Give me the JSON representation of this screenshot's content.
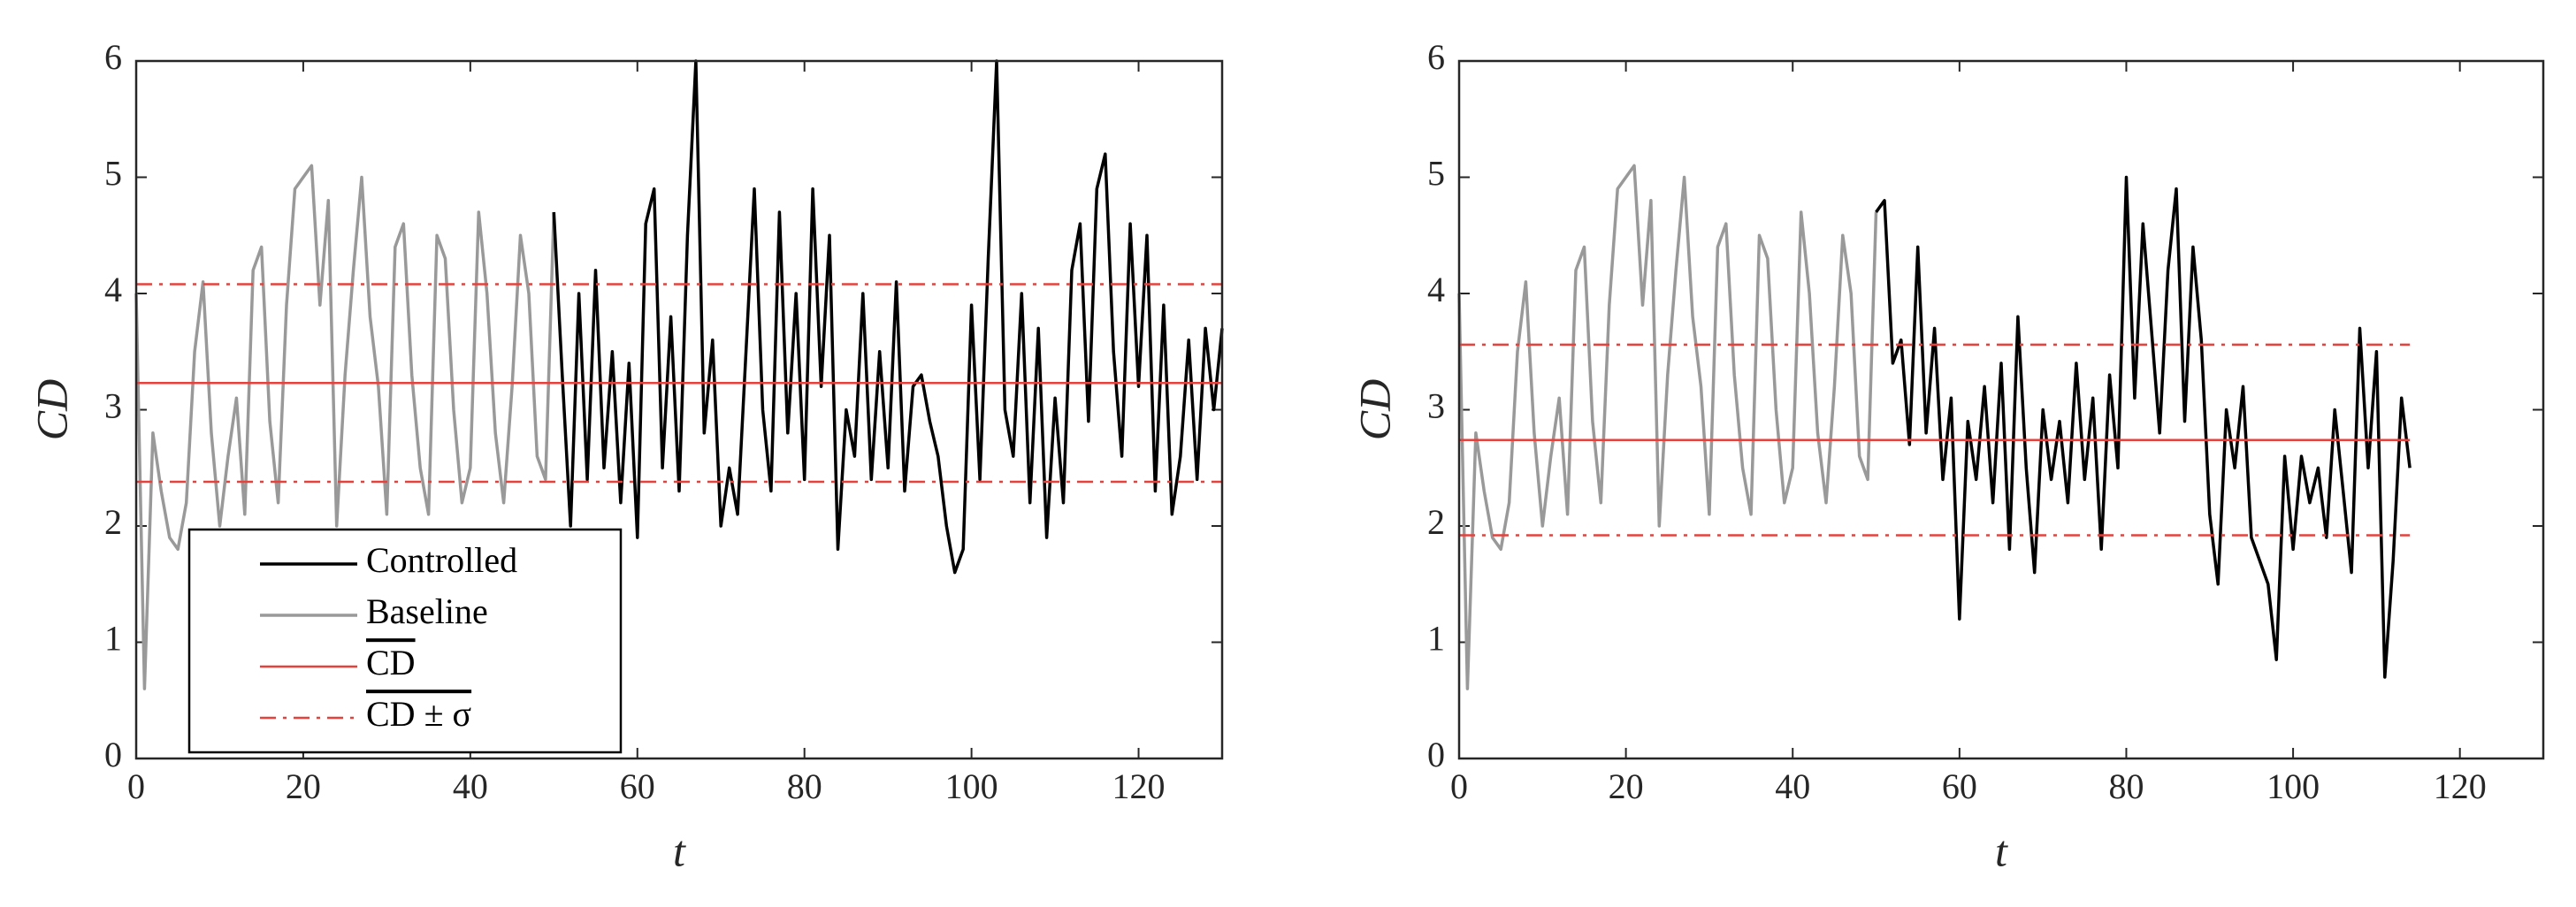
{
  "chart_data": [
    {
      "type": "line",
      "xlabel": "t",
      "ylabel": "CD",
      "xlim": [
        0,
        130
      ],
      "ylim": [
        0,
        6
      ],
      "xticks": [
        0,
        20,
        40,
        60,
        80,
        100,
        120
      ],
      "yticks": [
        0,
        1,
        2,
        3,
        4,
        5,
        6
      ],
      "legend": "lower left",
      "series": [
        {
          "name": "Controlled",
          "color": "#000000",
          "dash": "solid",
          "x": [
            50,
            51,
            52,
            53,
            54,
            55,
            56,
            57,
            58,
            59,
            60,
            61,
            62,
            63,
            64,
            65,
            66,
            67,
            68,
            69,
            70,
            71,
            72,
            73,
            74,
            75,
            76,
            77,
            78,
            79,
            80,
            81,
            82,
            83,
            84,
            85,
            86,
            87,
            88,
            89,
            90,
            91,
            92,
            93,
            94,
            95,
            96,
            97,
            98,
            99,
            100,
            101,
            102,
            103,
            104,
            105,
            106,
            107,
            108,
            109,
            110,
            111,
            112,
            113,
            114,
            115,
            116,
            117,
            118,
            119,
            120,
            121,
            122,
            123,
            124,
            125,
            126,
            127,
            128,
            129,
            130
          ],
          "values": [
            4.7,
            3.3,
            2.0,
            4.0,
            2.4,
            4.2,
            2.5,
            3.5,
            2.2,
            3.4,
            1.9,
            4.6,
            4.9,
            2.5,
            3.8,
            2.3,
            4.5,
            6.0,
            2.8,
            3.6,
            2.0,
            2.5,
            2.1,
            3.5,
            4.9,
            3.0,
            2.3,
            4.7,
            2.8,
            4.0,
            2.4,
            4.9,
            3.2,
            4.5,
            1.8,
            3.0,
            2.6,
            4.0,
            2.4,
            3.5,
            2.5,
            4.1,
            2.3,
            3.2,
            3.3,
            2.9,
            2.6,
            2.0,
            1.6,
            1.8,
            3.9,
            2.4,
            4.3,
            6.0,
            3.0,
            2.6,
            4.0,
            2.2,
            3.7,
            1.9,
            3.1,
            2.2,
            4.2,
            4.6,
            2.9,
            4.9,
            5.2,
            3.5,
            2.6,
            4.6,
            3.2,
            4.5,
            2.3,
            3.9,
            2.1,
            2.6,
            3.6,
            2.4,
            3.7,
            3.0,
            3.7
          ]
        },
        {
          "name": "Baseline",
          "color": "#999999",
          "dash": "solid",
          "x": [
            0,
            1,
            2,
            3,
            4,
            5,
            6,
            7,
            8,
            9,
            10,
            11,
            12,
            13,
            14,
            15,
            16,
            17,
            18,
            19,
            20,
            21,
            22,
            23,
            24,
            25,
            26,
            27,
            28,
            29,
            30,
            31,
            32,
            33,
            34,
            35,
            36,
            37,
            38,
            39,
            40,
            41,
            42,
            43,
            44,
            45,
            46,
            47,
            48,
            49,
            50
          ],
          "values": [
            4.0,
            0.6,
            2.8,
            2.3,
            1.9,
            1.8,
            2.2,
            3.5,
            4.1,
            2.8,
            2.0,
            2.6,
            3.1,
            2.1,
            4.2,
            4.4,
            2.9,
            2.2,
            3.9,
            4.9,
            5.0,
            5.1,
            3.9,
            4.8,
            2.0,
            3.3,
            4.2,
            5.0,
            3.8,
            3.2,
            2.1,
            4.4,
            4.6,
            3.3,
            2.5,
            2.1,
            4.5,
            4.3,
            3.0,
            2.2,
            2.5,
            4.7,
            4.0,
            2.8,
            2.2,
            3.2,
            4.5,
            4.0,
            2.6,
            2.4,
            4.7
          ]
        },
        {
          "name": "CD",
          "color": "#e8413c",
          "dash": "solid",
          "x": [
            0,
            130
          ],
          "values": [
            3.23,
            3.23
          ]
        },
        {
          "name": "CD ± σ",
          "color": "#e8413c",
          "dash": "dashdot",
          "x": [
            0,
            130
          ],
          "values": [
            4.08,
            4.08
          ]
        },
        {
          "color": "#e8413c",
          "dash": "dashdot",
          "x": [
            0,
            130
          ],
          "values": [
            2.38,
            2.38
          ]
        }
      ]
    },
    {
      "type": "line",
      "xlabel": "t",
      "ylabel": "CD",
      "xlim": [
        0,
        130
      ],
      "ylim": [
        0,
        6
      ],
      "xticks": [
        0,
        20,
        40,
        60,
        80,
        100,
        120
      ],
      "yticks": [
        0,
        1,
        2,
        3,
        4,
        5,
        6
      ],
      "series": [
        {
          "color": "#000000",
          "dash": "solid",
          "x": [
            50,
            51,
            52,
            53,
            54,
            55,
            56,
            57,
            58,
            59,
            60,
            61,
            62,
            63,
            64,
            65,
            66,
            67,
            68,
            69,
            70,
            71,
            72,
            73,
            74,
            75,
            76,
            77,
            78,
            79,
            80,
            81,
            82,
            83,
            84,
            85,
            86,
            87,
            88,
            89,
            90,
            91,
            92,
            93,
            94,
            95,
            96,
            97,
            98,
            99,
            100,
            101,
            102,
            103,
            104,
            105,
            106,
            107,
            108,
            109,
            110,
            111,
            112,
            113,
            114
          ],
          "values": [
            4.7,
            4.8,
            3.4,
            3.6,
            2.7,
            4.4,
            2.8,
            3.7,
            2.4,
            3.1,
            1.2,
            2.9,
            2.4,
            3.2,
            2.2,
            3.4,
            1.8,
            3.8,
            2.5,
            1.6,
            3.0,
            2.4,
            2.9,
            2.2,
            3.4,
            2.4,
            3.1,
            1.8,
            3.3,
            2.5,
            5.0,
            3.1,
            4.6,
            3.7,
            2.8,
            4.2,
            4.9,
            2.9,
            4.4,
            3.6,
            2.1,
            1.5,
            3.0,
            2.5,
            3.2,
            1.9,
            1.7,
            1.5,
            0.85,
            2.6,
            1.8,
            2.6,
            2.2,
            2.5,
            1.9,
            3.0,
            2.3,
            1.6,
            3.7,
            2.5,
            3.5,
            0.7,
            1.7,
            3.1,
            2.5
          ]
        },
        {
          "color": "#999999",
          "dash": "solid",
          "x": [
            0,
            1,
            2,
            3,
            4,
            5,
            6,
            7,
            8,
            9,
            10,
            11,
            12,
            13,
            14,
            15,
            16,
            17,
            18,
            19,
            20,
            21,
            22,
            23,
            24,
            25,
            26,
            27,
            28,
            29,
            30,
            31,
            32,
            33,
            34,
            35,
            36,
            37,
            38,
            39,
            40,
            41,
            42,
            43,
            44,
            45,
            46,
            47,
            48,
            49,
            50
          ],
          "values": [
            4.0,
            0.6,
            2.8,
            2.3,
            1.9,
            1.8,
            2.2,
            3.5,
            4.1,
            2.8,
            2.0,
            2.6,
            3.1,
            2.1,
            4.2,
            4.4,
            2.9,
            2.2,
            3.9,
            4.9,
            5.0,
            5.1,
            3.9,
            4.8,
            2.0,
            3.3,
            4.2,
            5.0,
            3.8,
            3.2,
            2.1,
            4.4,
            4.6,
            3.3,
            2.5,
            2.1,
            4.5,
            4.3,
            3.0,
            2.2,
            2.5,
            4.7,
            4.0,
            2.8,
            2.2,
            3.2,
            4.5,
            4.0,
            2.6,
            2.4,
            4.7
          ]
        },
        {
          "color": "#e8413c",
          "dash": "solid",
          "x": [
            0,
            114
          ],
          "values": [
            2.74,
            2.74
          ]
        },
        {
          "color": "#e8413c",
          "dash": "dashdot",
          "x": [
            0,
            114
          ],
          "values": [
            3.56,
            3.56
          ]
        },
        {
          "color": "#e8413c",
          "dash": "dashdot",
          "x": [
            0,
            114
          ],
          "values": [
            1.92,
            1.92
          ]
        }
      ]
    }
  ]
}
